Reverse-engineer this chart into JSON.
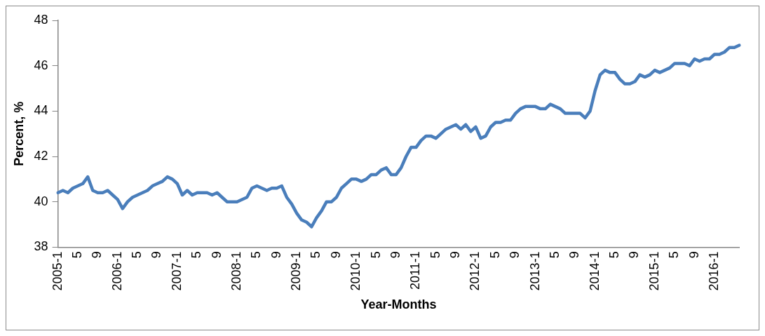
{
  "chart_data": {
    "type": "line",
    "xlabel": "Year-Months",
    "ylabel": "Percent, %",
    "categories": [
      "2005-1",
      null,
      null,
      null,
      "5",
      null,
      null,
      null,
      "9",
      null,
      null,
      null,
      "2006-1",
      null,
      null,
      null,
      "5",
      null,
      null,
      null,
      "9",
      null,
      null,
      null,
      "2007-1",
      null,
      null,
      null,
      "5",
      null,
      null,
      null,
      "9",
      null,
      null,
      null,
      "2008-1",
      null,
      null,
      null,
      "5",
      null,
      null,
      null,
      "9",
      null,
      null,
      null,
      "2009-1",
      null,
      null,
      null,
      "5",
      null,
      null,
      null,
      "9",
      null,
      null,
      null,
      "2010-1",
      null,
      null,
      null,
      "5",
      null,
      null,
      null,
      "9",
      null,
      null,
      null,
      "2011-1",
      null,
      null,
      null,
      "5",
      null,
      null,
      null,
      "9",
      null,
      null,
      null,
      "2012-1",
      null,
      null,
      null,
      "5",
      null,
      null,
      null,
      "9",
      null,
      null,
      null,
      "2013-1",
      null,
      null,
      null,
      "5",
      null,
      null,
      null,
      "9",
      null,
      null,
      null,
      "2014-1",
      null,
      null,
      null,
      "5",
      null,
      null,
      null,
      "9",
      null,
      null,
      null,
      "2015-1",
      null,
      null,
      null,
      "5",
      null,
      null,
      null,
      "9",
      null,
      null,
      null,
      "2016-1",
      null,
      null,
      null,
      null,
      null
    ],
    "series": [
      {
        "color": "#4a7ebb",
        "values": [
          40.4,
          40.5,
          40.4,
          40.6,
          40.7,
          40.8,
          41.1,
          40.5,
          40.4,
          40.4,
          40.5,
          40.3,
          40.1,
          39.7,
          40.0,
          40.2,
          40.3,
          40.4,
          40.5,
          40.7,
          40.8,
          40.9,
          41.1,
          41.0,
          40.8,
          40.3,
          40.5,
          40.3,
          40.4,
          40.4,
          40.4,
          40.3,
          40.4,
          40.2,
          40.0,
          40.0,
          40.0,
          40.1,
          40.2,
          40.6,
          40.7,
          40.6,
          40.5,
          40.6,
          40.6,
          40.7,
          40.2,
          39.9,
          39.5,
          39.2,
          39.1,
          38.9,
          39.3,
          39.6,
          40.0,
          40.0,
          40.2,
          40.6,
          40.8,
          41.0,
          41.0,
          40.9,
          41.0,
          41.2,
          41.2,
          41.4,
          41.5,
          41.2,
          41.2,
          41.5,
          42.0,
          42.4,
          42.4,
          42.7,
          42.9,
          42.9,
          42.8,
          43.0,
          43.2,
          43.3,
          43.4,
          43.2,
          43.4,
          43.1,
          43.3,
          42.8,
          42.9,
          43.3,
          43.5,
          43.5,
          43.6,
          43.6,
          43.9,
          44.1,
          44.2,
          44.2,
          44.2,
          44.1,
          44.1,
          44.3,
          44.2,
          44.1,
          43.9,
          43.9,
          43.9,
          43.9,
          43.7,
          44.0,
          44.9,
          45.6,
          45.8,
          45.7,
          45.7,
          45.4,
          45.2,
          45.2,
          45.3,
          45.6,
          45.5,
          45.6,
          45.8,
          45.7,
          45.8,
          45.9,
          46.1,
          46.1,
          46.1,
          46.0,
          46.3,
          46.2,
          46.3,
          46.3,
          46.5,
          46.5,
          46.6,
          46.8,
          46.8,
          46.9
        ]
      }
    ],
    "ylim": [
      38,
      48
    ],
    "yticks": [
      38,
      40,
      42,
      44,
      46,
      48
    ],
    "grid": false,
    "legend": false,
    "marker": "none",
    "line_style": "solid"
  }
}
